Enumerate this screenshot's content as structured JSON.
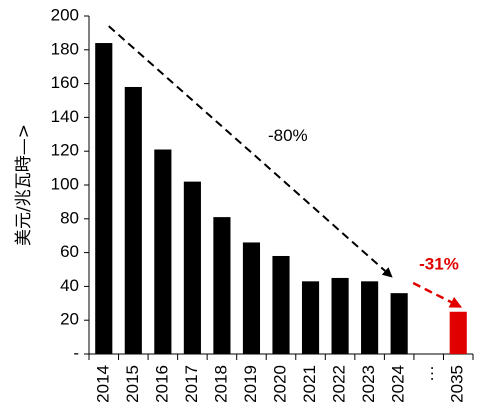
{
  "chart_data": {
    "type": "bar",
    "categories": [
      "2014",
      "2015",
      "2016",
      "2017",
      "2018",
      "2019",
      "2020",
      "2021",
      "2022",
      "2023",
      "2024",
      "…",
      "2035"
    ],
    "values": [
      184,
      158,
      121,
      102,
      81,
      66,
      58,
      43,
      45,
      43,
      36,
      null,
      25
    ],
    "title": "",
    "xlabel": "",
    "ylabel": "美元/兆瓦時—>",
    "ylim": [
      0,
      200
    ],
    "yticks": [
      "-",
      "20",
      "40",
      "60",
      "80",
      "100",
      "120",
      "140",
      "160",
      "180",
      "200"
    ],
    "grid": false,
    "colors": {
      "historical": "#000000",
      "projection": "#e00000",
      "annotation_black": "#000000",
      "annotation_red": "#e00000"
    },
    "annotations": [
      {
        "text": "-80%",
        "color": "#000000",
        "from": "2014",
        "to": "2024",
        "style": "dashed-arrow"
      },
      {
        "text": "-31%",
        "color": "#e00000",
        "from": "2024",
        "to": "2035",
        "style": "dashed-arrow"
      }
    ]
  }
}
